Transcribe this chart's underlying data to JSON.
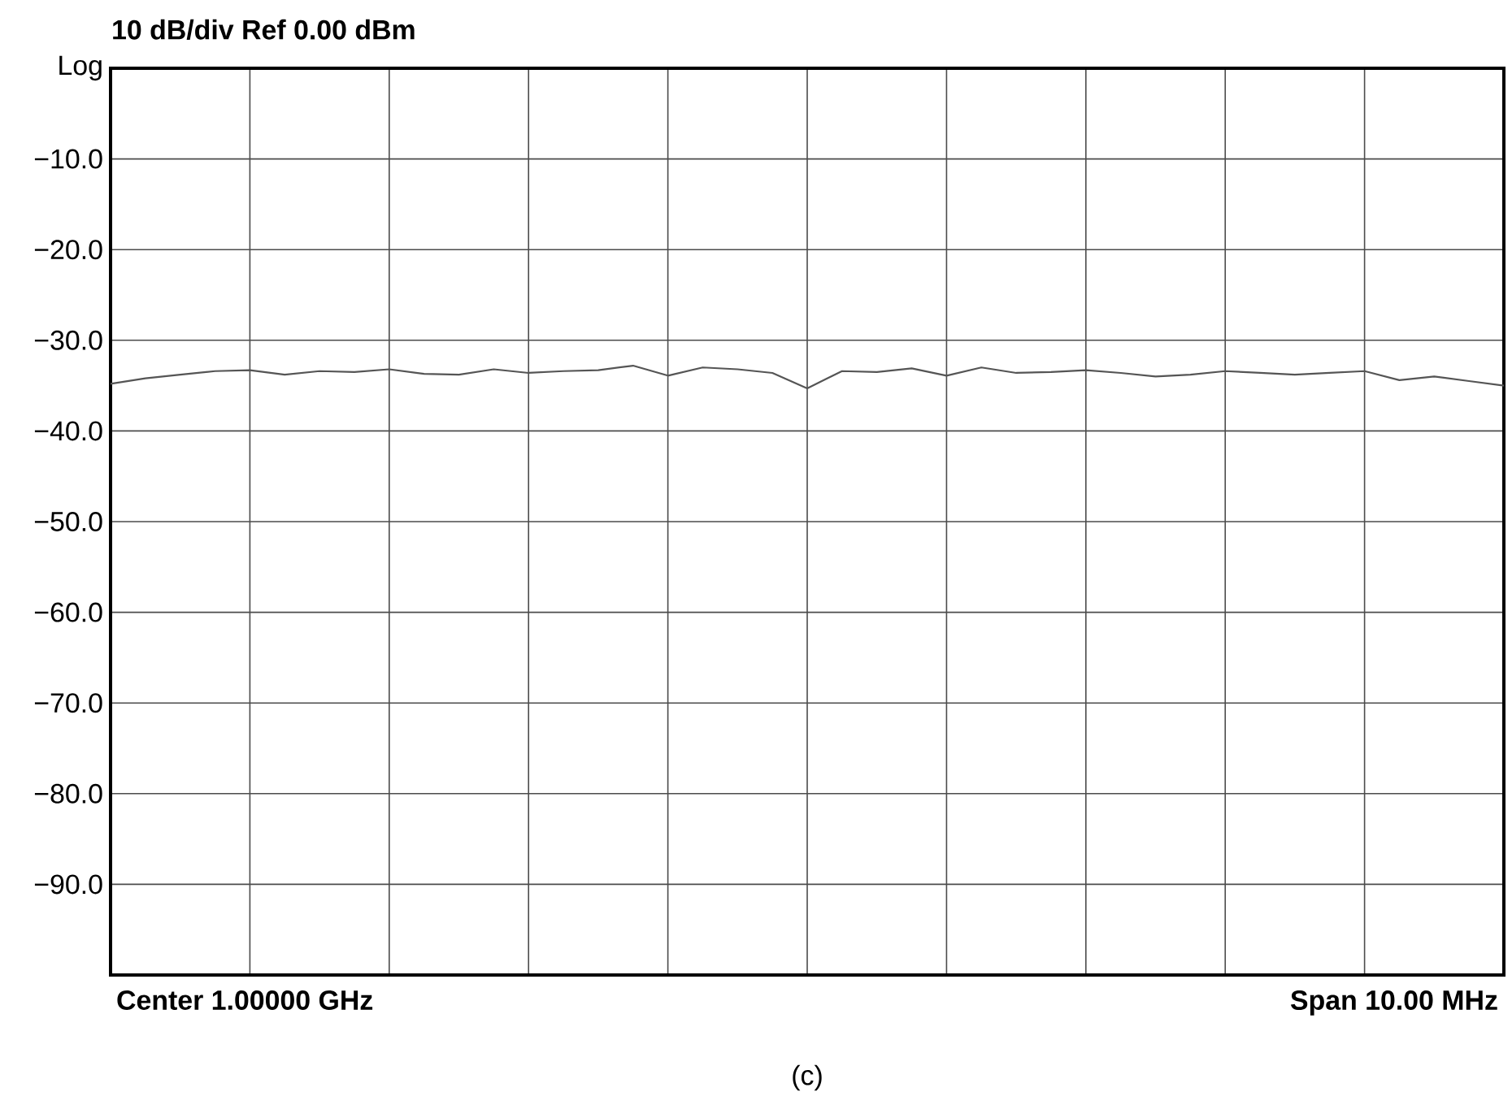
{
  "chart_data": {
    "type": "line",
    "title": "10 dB/div   Ref 0.00 dBm",
    "annotations": [
      "Center 1.00000 GHz",
      "Span 10.00 MHz",
      "(c)"
    ],
    "categories": [
      null,
      null,
      null,
      null,
      null,
      null,
      null,
      null,
      null,
      null,
      null,
      null,
      null,
      null,
      null,
      null,
      null,
      null,
      null,
      null,
      null,
      null,
      null,
      null,
      null,
      null,
      null,
      null,
      null,
      null,
      null,
      null,
      null,
      null,
      null,
      null,
      null,
      null,
      null,
      null,
      null
    ],
    "ylim": [
      -100,
      0
    ],
    "yticks": [
      {
        "value": 0,
        "label": "Log"
      },
      {
        "value": -10,
        "label": "−10.0"
      },
      {
        "value": -20,
        "label": "−20.0"
      },
      {
        "value": -30,
        "label": "−30.0"
      },
      {
        "value": -40,
        "label": "−40.0"
      },
      {
        "value": -50,
        "label": "−50.0"
      },
      {
        "value": -60,
        "label": "−60.0"
      },
      {
        "value": -70,
        "label": "−70.0"
      },
      {
        "value": -80,
        "label": "−80.0"
      },
      {
        "value": -90,
        "label": "−90.0"
      },
      {
        "value": -100,
        "label": null
      }
    ],
    "tick_labels": "y",
    "grid": true,
    "marker": "none",
    "line_style": "solid",
    "series": [
      {
        "color": "#555555",
        "values": [
          -34.8,
          -34.2,
          -33.8,
          -33.4,
          -33.3,
          -33.8,
          -33.4,
          -33.5,
          -33.2,
          -33.7,
          -33.8,
          -33.2,
          -33.6,
          -33.4,
          -33.3,
          -32.8,
          -33.9,
          -33.0,
          -33.2,
          -33.6,
          -35.3,
          -33.4,
          -33.5,
          -33.1,
          -33.9,
          -33.0,
          -33.6,
          -33.5,
          -33.3,
          -33.6,
          -34.0,
          -33.8,
          -33.4,
          -33.6,
          -33.8,
          -33.6,
          -33.4,
          -34.4,
          -34.0,
          -34.5,
          -35.0
        ]
      }
    ]
  }
}
